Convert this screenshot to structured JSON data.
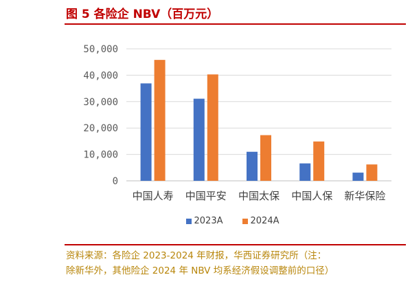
{
  "figure": {
    "title": "图 5 各险企 NBV（百万元）",
    "source_line1": "资料来源：各险企 2023-2024 年财报，华西证券研究所（注：",
    "source_line2": "除新华外，其他险企 2024 年 NBV 均系经济假设调整前的口径）"
  },
  "chart_data": {
    "type": "bar",
    "title": "",
    "categories": [
      "中国人寿",
      "中国平安",
      "中国太保",
      "中国人保",
      "新华保险"
    ],
    "series": [
      {
        "name": "2023A",
        "color": "#4472c4",
        "values": [
          36900,
          31100,
          11000,
          6600,
          3100
        ]
      },
      {
        "name": "2024A",
        "color": "#ed7d31",
        "values": [
          45800,
          40300,
          17300,
          14900,
          6200
        ]
      }
    ],
    "y_ticks": [
      "0",
      "10,000",
      "20,000",
      "30,000",
      "40,000",
      "50,000"
    ],
    "ylim": [
      0,
      50000
    ],
    "grid": true,
    "legend_position": "bottom"
  }
}
